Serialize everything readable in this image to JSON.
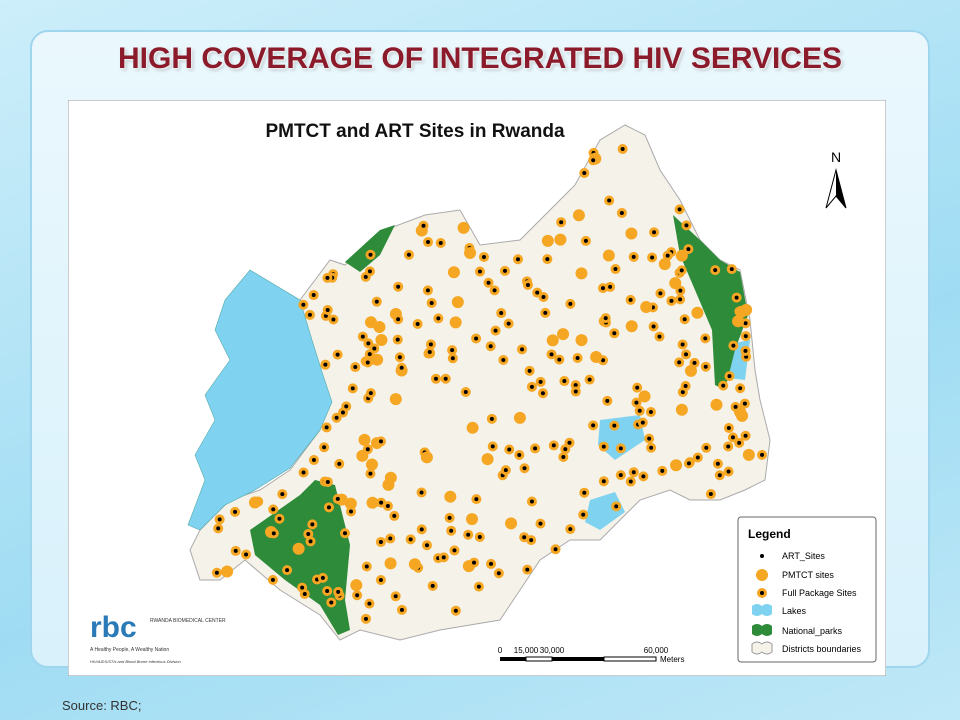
{
  "slide": {
    "title": "HIGH COVERAGE OF INTEGRATED HIV SERVICES",
    "source": "Source: RBC;"
  },
  "map": {
    "title": "PMTCT and ART Sites in Rwanda",
    "north": "N",
    "legend": {
      "title": "Legend",
      "items": [
        "ART_Sites",
        "PMTCT sites",
        "Full Package Sites",
        "Lakes",
        "National_parks",
        "Districts boundaries"
      ]
    },
    "scale_bar": {
      "labels": [
        "0",
        "15,000",
        "30,000",
        "60,000"
      ],
      "unit": "Meters"
    },
    "logo": {
      "mark": "rbc",
      "name": "RWANDA BIOMEDICAL CENTER",
      "motto": "A Healthy People, A Wealthy Nation",
      "division": "HIV/AIDS/STIs and Blood Borne Infectious Division"
    }
  }
}
